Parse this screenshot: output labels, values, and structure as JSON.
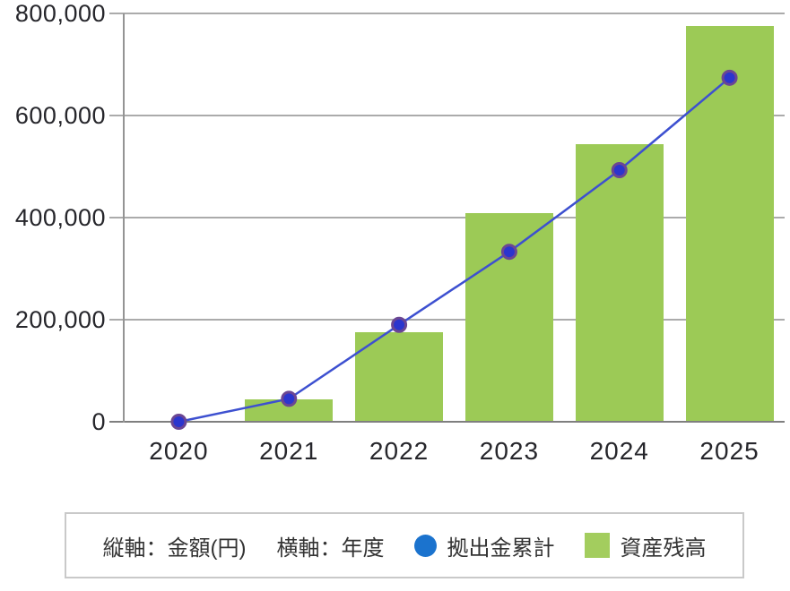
{
  "chart_data": {
    "type": "bar+line",
    "title": "",
    "categories": [
      "2020",
      "2021",
      "2022",
      "2023",
      "2024",
      "2025"
    ],
    "series": [
      {
        "name": "拠出金累計",
        "type": "line",
        "color": "#2B35CE",
        "values": [
          0,
          45000,
          190000,
          333000,
          493000,
          674000
        ]
      },
      {
        "name": "資産残高",
        "type": "bar",
        "color": "#9CCA56",
        "values": [
          0,
          42000,
          173000,
          407000,
          543000,
          774000
        ]
      }
    ],
    "xlabel": "年度",
    "ylabel": "金額(円)",
    "ylim": [
      0,
      800000
    ],
    "y_ticks": [
      0,
      200000,
      400000,
      600000,
      800000
    ],
    "y_tick_labels": [
      "0",
      "200,000",
      "400,000",
      "600,000",
      "800,000"
    ],
    "grid": true,
    "legend_position": "bottom"
  },
  "legend": {
    "y_axis_note": "縦軸：金額(円)",
    "x_axis_note": "横軸：年度",
    "line_label": "拠出金累計",
    "bar_label": "資産残高"
  },
  "colors": {
    "bar_fill": "#9CCA56",
    "line_stroke": "#3D50D0",
    "point_fill": "#2B35CE",
    "point_ring": "#6B4693",
    "legend_dot": "#1B73CE",
    "legend_square": "#A3CD5E",
    "gridline": "#ABABAB",
    "axis": "#7F7F7F",
    "tick_text": "#26262B",
    "legend_border": "#C9C9C9"
  }
}
